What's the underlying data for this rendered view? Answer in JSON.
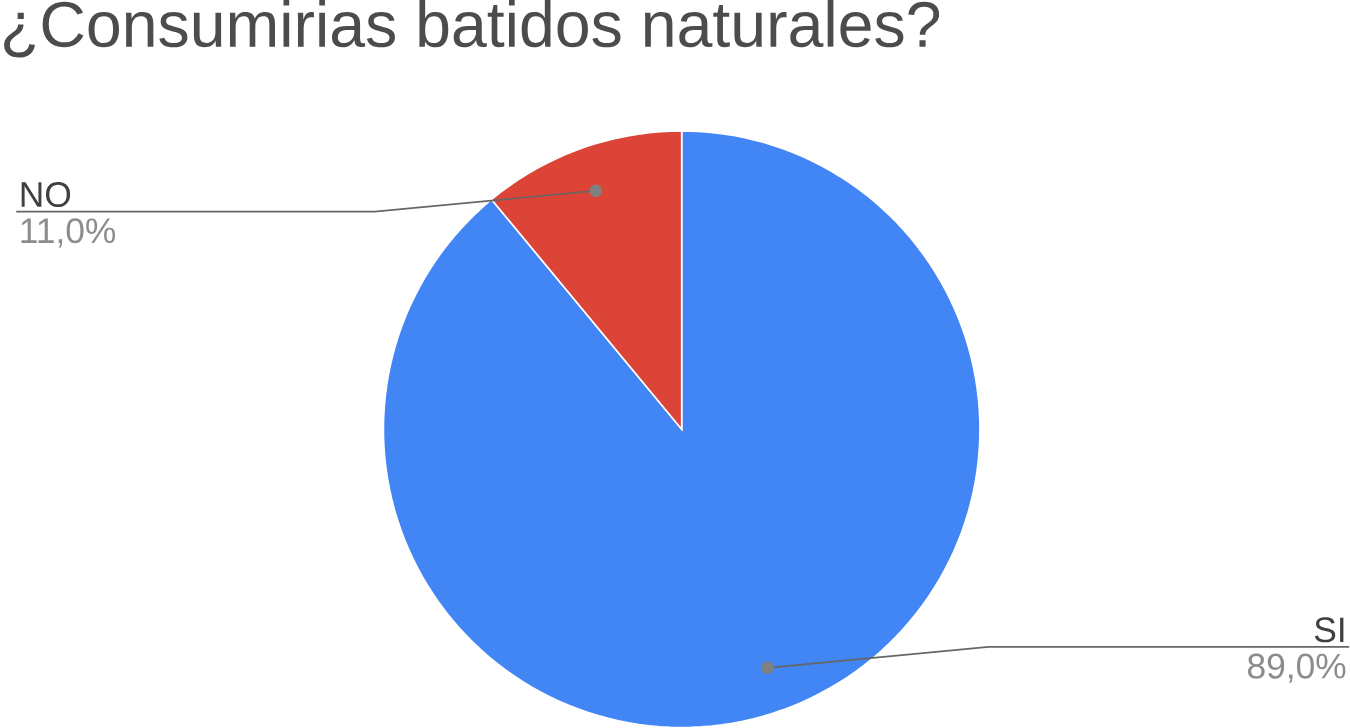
{
  "chart_data": {
    "type": "pie",
    "title": "¿Consumirias batidos naturales?",
    "categories": [
      "SI",
      "NO"
    ],
    "values": [
      89.0,
      11.0
    ],
    "colors": [
      "#4285f4",
      "#db4437"
    ],
    "value_labels": [
      "89,0%",
      "11,0%"
    ]
  }
}
